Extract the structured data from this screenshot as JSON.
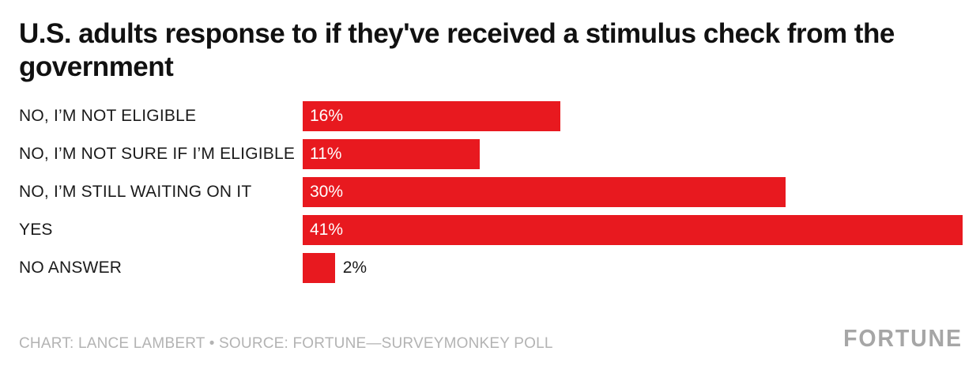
{
  "chart_data": {
    "type": "bar",
    "orientation": "horizontal",
    "title": "U.S. adults response to if they've received a stimulus check from the government",
    "categories": [
      "NO, I’M NOT ELIGIBLE",
      "NO, I’M NOT SURE IF I’M ELIGIBLE",
      "NO, I’M STILL WAITING ON IT",
      "YES",
      "NO ANSWER"
    ],
    "values": [
      16,
      11,
      30,
      41,
      2
    ],
    "value_labels": [
      "16%",
      "11%",
      "30%",
      "41%",
      "2%"
    ],
    "xlim": [
      0,
      41
    ],
    "bar_color": "#e8191f",
    "grid": false,
    "legend": false,
    "inside_label_threshold": 5
  },
  "footer": {
    "credit": "CHART: LANCE LAMBERT • SOURCE: FORTUNE—SURVEYMONKEY POLL",
    "brand": "FORTUNE"
  }
}
